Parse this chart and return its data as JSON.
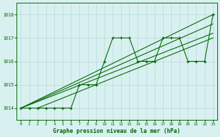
{
  "title": "Graphe pression niveau de la mer (hPa)",
  "background_color": "#d8f0f0",
  "grid_color": "#b8d8d8",
  "line_color": "#006600",
  "xlim": [
    -0.5,
    23.5
  ],
  "ylim": [
    1013.5,
    1018.5
  ],
  "yticks": [
    1014,
    1015,
    1016,
    1017,
    1018
  ],
  "xticks": [
    0,
    1,
    2,
    3,
    4,
    5,
    6,
    7,
    8,
    9,
    10,
    11,
    12,
    13,
    14,
    15,
    16,
    17,
    18,
    19,
    20,
    21,
    22,
    23
  ],
  "main_series_x": [
    0,
    1,
    2,
    3,
    4,
    5,
    6,
    7,
    8,
    9,
    10,
    11,
    12,
    13,
    14,
    15,
    16,
    17,
    18,
    19,
    20,
    21,
    22,
    23
  ],
  "main_series_y": [
    1014.0,
    1014.0,
    1014.0,
    1014.0,
    1014.0,
    1014.0,
    1014.0,
    1015.0,
    1015.0,
    1015.0,
    1016.0,
    1017.0,
    1017.0,
    1017.0,
    1016.0,
    1016.0,
    1016.0,
    1017.0,
    1017.0,
    1017.0,
    1016.0,
    1016.0,
    1016.0,
    1018.0
  ],
  "trend_lines": [
    {
      "x0": 0,
      "y0": 1014.0,
      "x1": 23,
      "y1": 1018.0
    },
    {
      "x0": 0,
      "y0": 1014.0,
      "x1": 23,
      "y1": 1017.2
    },
    {
      "x0": 0,
      "y0": 1014.0,
      "x1": 23,
      "y1": 1017.6
    },
    {
      "x0": 2,
      "y0": 1014.0,
      "x1": 23,
      "y1": 1017.0
    }
  ]
}
